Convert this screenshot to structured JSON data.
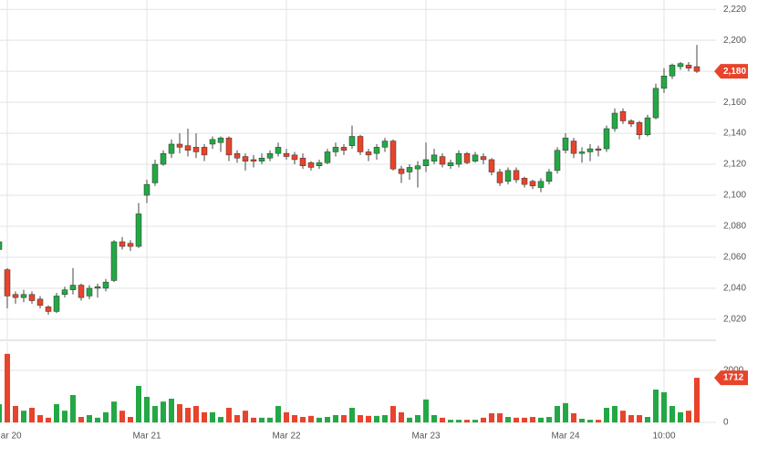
{
  "chart_data": {
    "type": "candlestick",
    "categories": [
      null,
      "Mar 20",
      null,
      null,
      null,
      null,
      null,
      null,
      null,
      null,
      null,
      null,
      null,
      null,
      null,
      null,
      null,
      null,
      "Mar 21",
      null,
      null,
      null,
      null,
      null,
      null,
      null,
      null,
      null,
      null,
      null,
      null,
      null,
      null,
      null,
      null,
      "Mar 22",
      null,
      null,
      null,
      null,
      null,
      null,
      null,
      null,
      null,
      null,
      null,
      null,
      null,
      null,
      null,
      null,
      "Mar 23",
      null,
      null,
      null,
      null,
      null,
      null,
      null,
      null,
      null,
      null,
      null,
      null,
      null,
      null,
      null,
      null,
      "Mar 24",
      null,
      null,
      null,
      null,
      null,
      null,
      null,
      null,
      null,
      null,
      null,
      "10:00",
      null,
      null,
      null,
      null
    ],
    "open": [
      2065,
      2052,
      2036,
      2034,
      2036,
      2033,
      2028,
      2025,
      2036,
      2039,
      2042,
      2035,
      2040,
      2040,
      2045,
      2070,
      2069,
      2067,
      2100,
      2108,
      2120,
      2127,
      2133,
      2132,
      2131,
      2131,
      2133,
      2134,
      2137,
      2127,
      2125,
      2123,
      2122,
      2124,
      2127,
      2127,
      2126,
      2124,
      2121,
      2119,
      2121,
      2128,
      2131,
      2132,
      2138,
      2128,
      2127,
      2131,
      2135,
      2117,
      2115,
      2117,
      2119,
      2122,
      2125,
      2119,
      2120,
      2127,
      2122,
      2125,
      2123,
      2115,
      2109,
      2116,
      2111,
      2109,
      2105,
      2109,
      2116,
      2129,
      2135,
      2127,
      2128,
      2130,
      2130,
      2143,
      2154,
      2148,
      2147,
      2139,
      2150,
      2169,
      2177,
      2183,
      2184,
      2183
    ],
    "high": [
      2071,
      2053,
      2038,
      2039,
      2038,
      2035,
      2029,
      2037,
      2041,
      2053,
      2043,
      2042,
      2043,
      2046,
      2071,
      2073,
      2071,
      2095,
      2110,
      2123,
      2129,
      2136,
      2140,
      2143,
      2140,
      2133,
      2138,
      2138,
      2138,
      2129,
      2127,
      2126,
      2127,
      2129,
      2134,
      2130,
      2128,
      2127,
      2122,
      2123,
      2130,
      2134,
      2133,
      2145,
      2139,
      2130,
      2133,
      2137,
      2136,
      2119,
      2120,
      2122,
      2134,
      2130,
      2127,
      2123,
      2129,
      2128,
      2128,
      2127,
      2124,
      2117,
      2118,
      2118,
      2112,
      2110,
      2111,
      2117,
      2131,
      2140,
      2137,
      2131,
      2133,
      2132,
      2145,
      2156,
      2156,
      2149,
      2148,
      2152,
      2172,
      2182,
      2185,
      2186,
      2186,
      2197
    ],
    "low": [
      2064,
      2027,
      2030,
      2031,
      2030,
      2027,
      2023,
      2024,
      2034,
      2036,
      2032,
      2033,
      2034,
      2038,
      2044,
      2065,
      2064,
      2066,
      2095,
      2106,
      2119,
      2124,
      2127,
      2125,
      2124,
      2122,
      2130,
      2128,
      2122,
      2121,
      2116,
      2118,
      2120,
      2122,
      2125,
      2123,
      2120,
      2117,
      2116,
      2117,
      2120,
      2125,
      2126,
      2130,
      2126,
      2122,
      2123,
      2128,
      2116,
      2108,
      2110,
      2105,
      2115,
      2120,
      2118,
      2117,
      2118,
      2120,
      2121,
      2120,
      2113,
      2106,
      2107,
      2108,
      2105,
      2104,
      2102,
      2107,
      2114,
      2127,
      2124,
      2121,
      2122,
      2125,
      2128,
      2141,
      2146,
      2144,
      2136,
      2138,
      2149,
      2166,
      2175,
      2181,
      2180,
      2179
    ],
    "close": [
      2070,
      2035,
      2034,
      2036,
      2032,
      2029,
      2025,
      2035,
      2039,
      2042,
      2034,
      2040,
      2041,
      2044,
      2070,
      2067,
      2067,
      2088,
      2107,
      2120,
      2127,
      2133,
      2131,
      2129,
      2128,
      2126,
      2136,
      2137,
      2126,
      2124,
      2122,
      2122,
      2124,
      2127,
      2131,
      2125,
      2123,
      2119,
      2118,
      2121,
      2128,
      2131,
      2129,
      2138,
      2128,
      2126,
      2131,
      2135,
      2117,
      2114,
      2118,
      2119,
      2123,
      2126,
      2120,
      2121,
      2127,
      2121,
      2126,
      2123,
      2115,
      2108,
      2116,
      2110,
      2107,
      2106,
      2109,
      2115,
      2129,
      2137,
      2127,
      2128,
      2130,
      2129,
      2143,
      2153,
      2148,
      2146,
      2139,
      2150,
      2169,
      2177,
      2184,
      2185,
      2182,
      2180
    ],
    "volume": [
      700,
      2630,
      630,
      450,
      560,
      280,
      180,
      700,
      450,
      1050,
      210,
      280,
      180,
      390,
      800,
      450,
      210,
      1400,
      980,
      630,
      800,
      910,
      700,
      560,
      630,
      390,
      390,
      210,
      560,
      280,
      450,
      180,
      180,
      180,
      630,
      390,
      280,
      210,
      250,
      180,
      210,
      280,
      280,
      560,
      280,
      250,
      250,
      280,
      630,
      390,
      180,
      280,
      880,
      280,
      180,
      100,
      100,
      100,
      100,
      180,
      350,
      350,
      210,
      180,
      180,
      210,
      180,
      210,
      630,
      740,
      350,
      140,
      100,
      100,
      560,
      630,
      450,
      280,
      280,
      210,
      1260,
      1160,
      630,
      390,
      450,
      1712
    ],
    "up_color": "#23a845",
    "down_color": "#e8432b",
    "ylim": [
      2007,
      2226
    ],
    "yticks": [
      {
        "value": 2020,
        "label": "2,020"
      },
      {
        "value": 2040,
        "label": "2,040"
      },
      {
        "value": 2060,
        "label": "2,060"
      },
      {
        "value": 2080,
        "label": "2,080"
      },
      {
        "value": 2100,
        "label": "2,100"
      },
      {
        "value": 2120,
        "label": "2,120"
      },
      {
        "value": 2140,
        "label": "2,140"
      },
      {
        "value": 2160,
        "label": "2,160"
      },
      {
        "value": 2180,
        "label": "2,180"
      },
      {
        "value": 2200,
        "label": "2,200"
      },
      {
        "value": 2220,
        "label": "2,220"
      }
    ],
    "volume_ylim": [
      0,
      3080
    ],
    "volume_yticks": [
      0,
      2000
    ],
    "last_close_label": "2,180",
    "grid": true
  }
}
